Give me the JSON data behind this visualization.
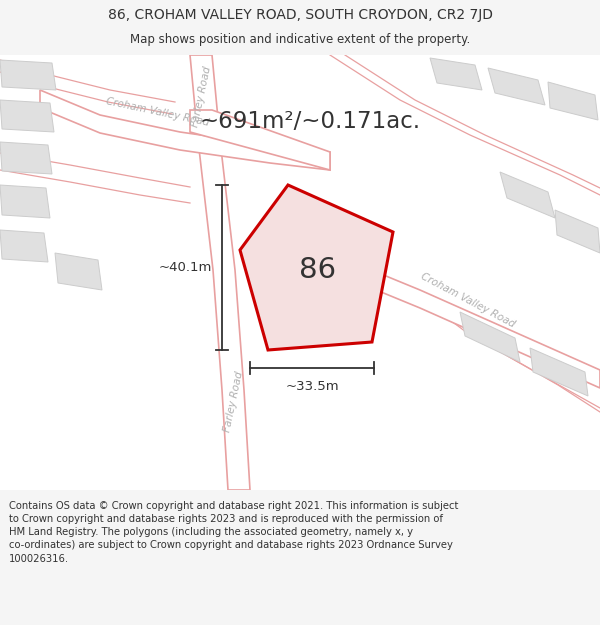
{
  "title_line1": "86, CROHAM VALLEY ROAD, SOUTH CROYDON, CR2 7JD",
  "title_line2": "Map shows position and indicative extent of the property.",
  "area_text": "~691m²/~0.171ac.",
  "label_86": "86",
  "dim_vertical": "~40.1m",
  "dim_horizontal": "~33.5m",
  "footer_lines": [
    "Contains OS data © Crown copyright and database right 2021. This information is subject",
    "to Crown copyright and database rights 2023 and is reproduced with the permission of",
    "HM Land Registry. The polygons (including the associated geometry, namely x, y",
    "co-ordinates) are subject to Crown copyright and database rights 2023 Ordnance Survey",
    "100026316."
  ],
  "bg_color": "#f5f5f5",
  "map_bg_color": "#ffffff",
  "road_line_color": "#e8a0a0",
  "road_label_color": "#b0b0b0",
  "building_fill_color": "#e0e0e0",
  "building_line_color": "#cccccc",
  "property_fill_color": "#f5e0e0",
  "property_line_color": "#cc0000",
  "dim_line_color": "#333333",
  "text_color": "#333333",
  "title_color": "#333333",
  "footer_color": "#333333",
  "footer_bg": "#eeeeee"
}
